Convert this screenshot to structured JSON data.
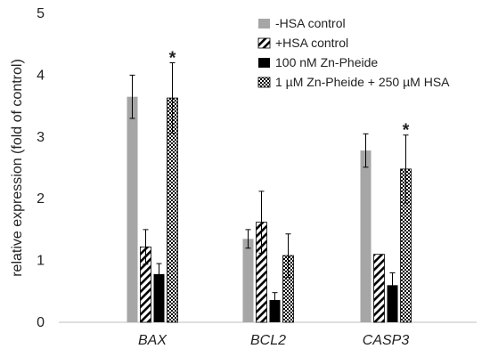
{
  "chart_data": {
    "type": "bar",
    "ylabel": "relative expression (fold of control)",
    "ylim": [
      0,
      5
    ],
    "yticks": [
      "0",
      "1",
      "2",
      "3",
      "4",
      "5"
    ],
    "categories": [
      "BAX",
      "BCL2",
      "CASP3"
    ],
    "legend_position": "top-right",
    "grid": false,
    "series": [
      {
        "name": "-HSA control",
        "values": [
          3.65,
          1.35,
          2.78
        ],
        "errors": [
          0.35,
          0.15,
          0.27
        ],
        "fill": "solid-gray",
        "color": "#a6a6a6"
      },
      {
        "name": "+HSA control",
        "values": [
          1.22,
          1.62,
          1.1
        ],
        "errors": [
          0.28,
          0.5,
          0.0
        ],
        "fill": "diagonal-hatch",
        "color": "#000000"
      },
      {
        "name": "100 nM Zn-Pheide",
        "values": [
          0.78,
          0.36,
          0.6
        ],
        "errors": [
          0.17,
          0.12,
          0.2
        ],
        "fill": "solid-black",
        "color": "#000000"
      },
      {
        "name": "1 µM Zn-Pheide + 250 µM HSA",
        "values": [
          3.63,
          1.08,
          2.48
        ],
        "errors": [
          0.57,
          0.35,
          0.55
        ],
        "fill": "checker",
        "color": "#000000"
      }
    ],
    "annotations": [
      {
        "text": "*",
        "category": "BAX",
        "series": 3
      },
      {
        "text": "*",
        "category": "CASP3",
        "series": 3
      }
    ]
  }
}
